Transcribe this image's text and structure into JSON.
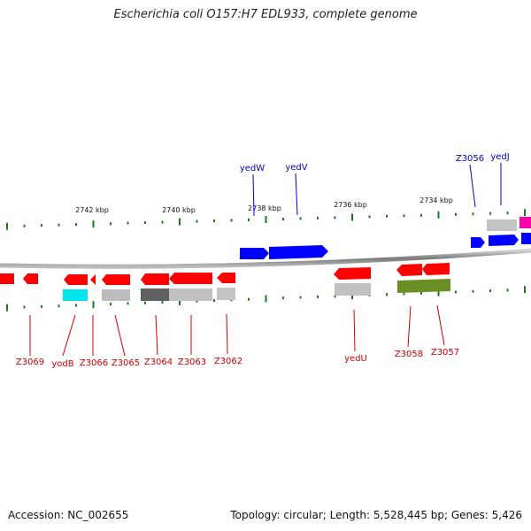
{
  "title": "Escherichia coli O157:H7 EDL933, complete genome",
  "footer": {
    "accession": "Accession: NC_002655",
    "summary": "Topology: circular; Length: 5,528,445 bp; Genes: 5,426"
  },
  "colors": {
    "backbone": "#8c8c8c",
    "tick": "#1a7a1a",
    "forward_label": "#0000cc",
    "reverse_label": "#cc0000",
    "gene_red": "#ff0000",
    "gene_blue": "#0000ff",
    "gene_magenta": "#ff00aa",
    "gene_gray": "#bdbdbd",
    "gene_darkgray": "#606060",
    "gene_cyan": "#00e5ee",
    "gene_olive": "#6b8e23"
  },
  "scale_labels": [
    "2742 kbp",
    "2740 kbp",
    "2738 kbp",
    "2736 kbp",
    "2734 kbp"
  ],
  "forward_gene_labels": [
    "yedW",
    "yedV",
    "Z3056",
    "yedJ"
  ],
  "reverse_gene_labels": [
    "Z3069",
    "yodB",
    "Z3066",
    "Z3065",
    "Z3064",
    "Z3063",
    "Z3062",
    "yedU",
    "Z3058",
    "Z3057"
  ]
}
